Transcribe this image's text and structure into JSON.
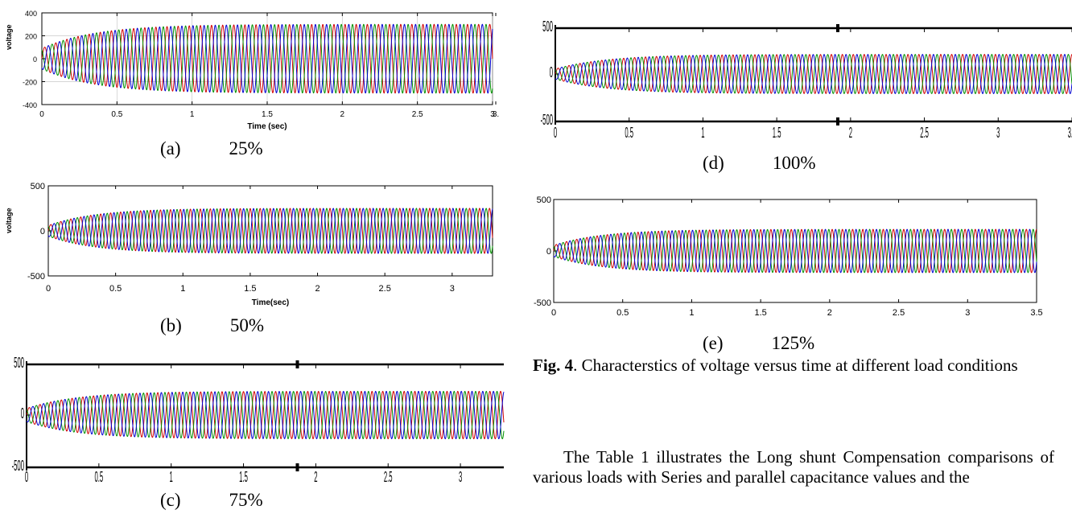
{
  "figure": {
    "caption_label": "Fig. 4",
    "caption_text": ". Characterstics of voltage versus time at different load conditions"
  },
  "body_text": "The Table 1 illustrates the Long shunt Compensation comparisons of various loads with Series and parallel capacitance values and the",
  "chart_data": [
    {
      "id": "a",
      "type": "line",
      "label": "(a)",
      "load": "25%",
      "xlabel": "Time (sec)",
      "ylabel": "voltage",
      "xlim": [
        0,
        3
      ],
      "ylim": [
        -400,
        400
      ],
      "xticks": [
        "0",
        "0.5",
        "1",
        "1.5",
        "2",
        "2.5",
        "3",
        "3."
      ],
      "yticks": [
        "400",
        "200",
        "0",
        "-200",
        "-400"
      ],
      "style": "grid",
      "amplitude": 300,
      "start_amplitude": 90,
      "series": [
        {
          "color": "#d00000"
        },
        {
          "color": "#009000"
        },
        {
          "color": "#0000d0"
        }
      ]
    },
    {
      "id": "b",
      "type": "line",
      "label": "(b)",
      "load": "50%",
      "xlabel": "Time(sec)",
      "ylabel": "voltage",
      "xlim": [
        0,
        3.3
      ],
      "ylim": [
        -500,
        500
      ],
      "xticks": [
        "0",
        "0.5",
        "1",
        "1.5",
        "2",
        "2.5",
        "3"
      ],
      "yticks": [
        "500",
        "0",
        "-500"
      ],
      "style": "box",
      "amplitude": 250,
      "start_amplitude": 60,
      "series": [
        {
          "color": "#d00000"
        },
        {
          "color": "#009000"
        },
        {
          "color": "#0000d0"
        }
      ]
    },
    {
      "id": "c",
      "type": "line",
      "label": "(c)",
      "load": "75%",
      "xlabel": "",
      "ylabel": "",
      "xlim": [
        0,
        3.3
      ],
      "ylim": [
        -500,
        500
      ],
      "xticks": [
        "0",
        "0.5",
        "1",
        "1.5",
        "2",
        "2.5",
        "3"
      ],
      "yticks": [
        "500",
        "0",
        "-500"
      ],
      "style": "scope",
      "amplitude": 250,
      "start_amplitude": 70,
      "series": [
        {
          "color": "#d00000"
        },
        {
          "color": "#009000"
        },
        {
          "color": "#0000d0"
        }
      ]
    },
    {
      "id": "d",
      "type": "line",
      "label": "(d)",
      "load": "100%",
      "xlabel": "",
      "ylabel": "",
      "xlim": [
        0,
        3.5
      ],
      "ylim": [
        -500,
        500
      ],
      "xticks": [
        "0",
        "0.5",
        "1",
        "1.5",
        "2",
        "2.5",
        "3",
        "3.5"
      ],
      "yticks": [
        "500",
        "0",
        "-500"
      ],
      "style": "scope",
      "amplitude": 230,
      "start_amplitude": 60,
      "series": [
        {
          "color": "#d00000"
        },
        {
          "color": "#009000"
        },
        {
          "color": "#0000d0"
        }
      ]
    },
    {
      "id": "e",
      "type": "line",
      "label": "(e)",
      "load": "125%",
      "xlabel": "",
      "ylabel": "",
      "xlim": [
        0,
        3.5
      ],
      "ylim": [
        -500,
        500
      ],
      "xticks": [
        "0",
        "0.5",
        "1",
        "1.5",
        "2",
        "2.5",
        "3",
        "3.5"
      ],
      "yticks": [
        "500",
        "0",
        "-500"
      ],
      "style": "box",
      "amplitude": 210,
      "start_amplitude": 55,
      "series": [
        {
          "color": "#d00000"
        },
        {
          "color": "#009000"
        },
        {
          "color": "#0000d0"
        }
      ]
    }
  ]
}
